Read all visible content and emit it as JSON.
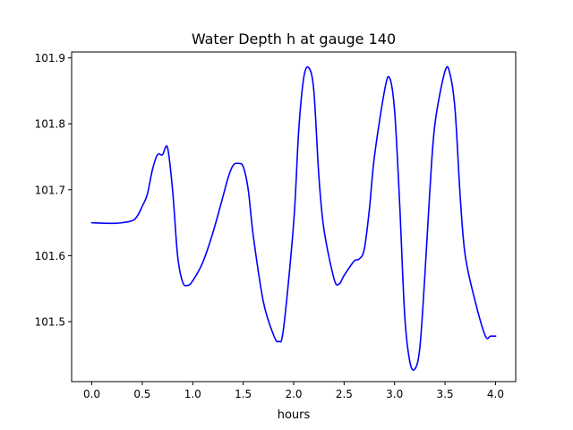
{
  "chart_data": {
    "type": "line",
    "title": "Water Depth h at gauge 140",
    "xlabel": "hours",
    "ylabel": "",
    "xlim": [
      -0.2,
      4.2
    ],
    "ylim": [
      101.409,
      101.909
    ],
    "xticks": [
      0.0,
      0.5,
      1.0,
      1.5,
      2.0,
      2.5,
      3.0,
      3.5,
      4.0
    ],
    "xtick_labels": [
      "0.0",
      "0.5",
      "1.0",
      "1.5",
      "2.0",
      "2.5",
      "3.0",
      "3.5",
      "4.0"
    ],
    "yticks": [
      101.5,
      101.6,
      101.7,
      101.8,
      101.9
    ],
    "ytick_labels": [
      "101.5",
      "101.6",
      "101.7",
      "101.8",
      "101.9"
    ],
    "grid": false,
    "series": [
      {
        "color": "#0000ff",
        "x": [
          0.0,
          0.2,
          0.3,
          0.4,
          0.45,
          0.5,
          0.55,
          0.6,
          0.65,
          0.7,
          0.75,
          0.8,
          0.85,
          0.9,
          0.95,
          1.0,
          1.1,
          1.2,
          1.3,
          1.35,
          1.4,
          1.45,
          1.5,
          1.55,
          1.6,
          1.7,
          1.8,
          1.85,
          1.9,
          2.0,
          2.05,
          2.1,
          2.15,
          2.2,
          2.25,
          2.3,
          2.4,
          2.45,
          2.5,
          2.6,
          2.65,
          2.7,
          2.75,
          2.8,
          2.9,
          2.95,
          3.0,
          3.05,
          3.1,
          3.15,
          3.2,
          3.25,
          3.3,
          3.35,
          3.4,
          3.5,
          3.55,
          3.6,
          3.65,
          3.7,
          3.8,
          3.9,
          3.95,
          4.0
        ],
        "y": [
          101.65,
          101.649,
          101.65,
          101.653,
          101.66,
          101.675,
          101.693,
          101.73,
          101.753,
          101.753,
          101.764,
          101.7,
          101.6,
          101.56,
          101.555,
          101.562,
          101.59,
          101.635,
          101.69,
          101.718,
          101.737,
          101.74,
          101.735,
          101.7,
          101.63,
          101.53,
          101.48,
          101.47,
          101.49,
          101.65,
          101.79,
          101.87,
          101.885,
          101.85,
          101.72,
          101.64,
          101.565,
          101.557,
          101.57,
          101.592,
          101.595,
          101.61,
          101.67,
          101.75,
          101.85,
          101.87,
          101.82,
          101.68,
          101.51,
          101.44,
          101.428,
          101.46,
          101.57,
          101.7,
          101.8,
          101.88,
          101.875,
          101.82,
          101.69,
          101.6,
          101.53,
          101.478,
          101.478,
          101.478
        ]
      }
    ]
  }
}
